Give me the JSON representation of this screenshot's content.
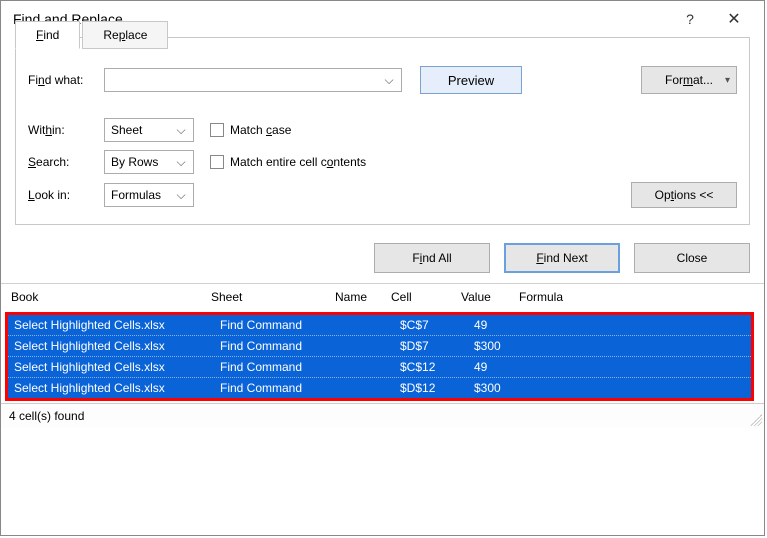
{
  "title": "Find and Replace",
  "tabs": {
    "find": "Find",
    "replace": "Replace"
  },
  "labels": {
    "find_what": "Find what:",
    "within": "Within:",
    "search": "Search:",
    "look_in": "Look in:",
    "match_case": "Match case",
    "match_contents": "Match entire cell contents"
  },
  "fields": {
    "find_what_value": "",
    "within_value": "Sheet",
    "search_value": "By Rows",
    "look_in_value": "Formulas"
  },
  "preview_label": "Preview",
  "format_label": "Format...",
  "options_label": "Options <<",
  "buttons": {
    "find_all": "Find All",
    "find_next": "Find Next",
    "close": "Close"
  },
  "headers": {
    "book": "Book",
    "sheet": "Sheet",
    "name": "Name",
    "cell": "Cell",
    "value": "Value",
    "formula": "Formula"
  },
  "rows": [
    {
      "book": "Select Highlighted Cells.xlsx",
      "sheet": "Find Command",
      "name": "",
      "cell": "$C$7",
      "value": "49",
      "formula": ""
    },
    {
      "book": "Select Highlighted Cells.xlsx",
      "sheet": "Find Command",
      "name": "",
      "cell": "$D$7",
      "value": "  $300",
      "formula": ""
    },
    {
      "book": "Select Highlighted Cells.xlsx",
      "sheet": "Find Command",
      "name": "",
      "cell": "$C$12",
      "value": "49",
      "formula": ""
    },
    {
      "book": "Select Highlighted Cells.xlsx",
      "sheet": "Find Command",
      "name": "",
      "cell": "$D$12",
      "value": "  $300",
      "formula": ""
    }
  ],
  "status": "4 cell(s) found",
  "colors": {
    "selection_bg": "#0a64d8",
    "selection_fg": "#ffffff",
    "highlight_border": "#ff0000",
    "preview_bg": "#e6eefc",
    "preview_border": "#7da2ce",
    "btn_bg": "#e6e6e6",
    "btn_border": "#adadad"
  }
}
